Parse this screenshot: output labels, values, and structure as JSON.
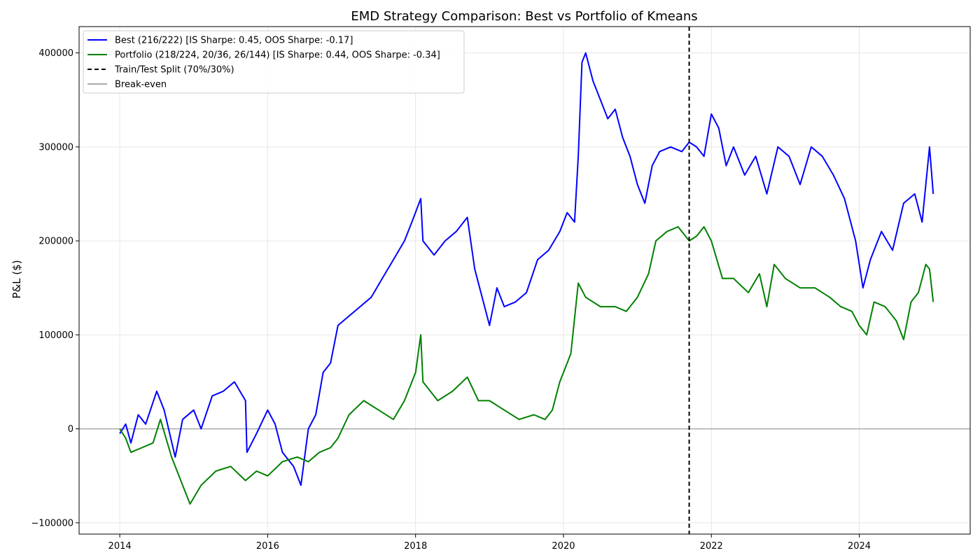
{
  "chart_data": {
    "type": "line",
    "title": "EMD Strategy Comparison: Best vs Portfolio of Kmeans",
    "xlabel": "",
    "ylabel": "P&L ($)",
    "xlim": [
      2013.45,
      2025.5
    ],
    "ylim": [
      -112000,
      428000
    ],
    "grid": true,
    "legend_position": "top-left",
    "x_ticks": [
      2014,
      2016,
      2018,
      2020,
      2022,
      2024
    ],
    "x_tick_labels": [
      "2014",
      "2016",
      "2018",
      "2020",
      "2022",
      "2024"
    ],
    "y_ticks": [
      -100000,
      0,
      100000,
      200000,
      300000,
      400000
    ],
    "y_tick_labels": [
      "−100000",
      "0",
      "100000",
      "200000",
      "300000",
      "400000"
    ],
    "series": [
      {
        "name": "Best (216/222) [IS Sharpe: 0.45, OOS Sharpe: -0.17]",
        "color": "#0000ff",
        "style": "solid",
        "x": [
          2014.0,
          2014.08,
          2014.15,
          2014.25,
          2014.35,
          2014.5,
          2014.6,
          2014.75,
          2014.85,
          2015.0,
          2015.1,
          2015.25,
          2015.4,
          2015.55,
          2015.7,
          2015.72,
          2015.85,
          2016.0,
          2016.1,
          2016.2,
          2016.35,
          2016.45,
          2016.55,
          2016.65,
          2016.75,
          2016.85,
          2016.95,
          2017.1,
          2017.25,
          2017.4,
          2017.55,
          2017.7,
          2017.85,
          2017.95,
          2018.07,
          2018.1,
          2018.25,
          2018.4,
          2018.55,
          2018.7,
          2018.8,
          2018.9,
          2019.0,
          2019.1,
          2019.2,
          2019.35,
          2019.5,
          2019.65,
          2019.8,
          2019.95,
          2020.05,
          2020.15,
          2020.2,
          2020.25,
          2020.3,
          2020.4,
          2020.5,
          2020.6,
          2020.7,
          2020.8,
          2020.9,
          2021.0,
          2021.1,
          2021.2,
          2021.3,
          2021.45,
          2021.6,
          2021.7,
          2021.8,
          2021.9,
          2022.0,
          2022.1,
          2022.2,
          2022.3,
          2022.45,
          2022.6,
          2022.75,
          2022.9,
          2023.05,
          2023.2,
          2023.35,
          2023.5,
          2023.65,
          2023.8,
          2023.95,
          2024.05,
          2024.15,
          2024.3,
          2024.45,
          2024.6,
          2024.75,
          2024.85,
          2024.95,
          2025.0
        ],
        "y": [
          -5000,
          5000,
          -15000,
          15000,
          5000,
          40000,
          20000,
          -30000,
          10000,
          20000,
          0,
          35000,
          40000,
          50000,
          30000,
          -25000,
          -5000,
          20000,
          5000,
          -25000,
          -40000,
          -60000,
          0,
          15000,
          60000,
          70000,
          110000,
          120000,
          130000,
          140000,
          160000,
          180000,
          200000,
          220000,
          245000,
          200000,
          185000,
          200000,
          210000,
          225000,
          170000,
          140000,
          110000,
          150000,
          130000,
          135000,
          145000,
          180000,
          190000,
          210000,
          230000,
          220000,
          290000,
          390000,
          400000,
          370000,
          350000,
          330000,
          340000,
          310000,
          290000,
          260000,
          240000,
          280000,
          295000,
          300000,
          295000,
          305000,
          300000,
          290000,
          335000,
          320000,
          280000,
          300000,
          270000,
          290000,
          250000,
          300000,
          290000,
          260000,
          300000,
          290000,
          270000,
          245000,
          200000,
          150000,
          180000,
          210000,
          190000,
          240000,
          250000,
          220000,
          300000,
          250000
        ]
      },
      {
        "name": "Portfolio (218/224, 20/36, 26/144) [IS Sharpe: 0.44, OOS Sharpe: -0.34]",
        "color": "#008000",
        "style": "solid",
        "x": [
          2014.0,
          2014.08,
          2014.15,
          2014.3,
          2014.45,
          2014.55,
          2014.7,
          2014.85,
          2014.95,
          2015.1,
          2015.3,
          2015.5,
          2015.7,
          2015.85,
          2016.0,
          2016.2,
          2016.4,
          2016.55,
          2016.7,
          2016.85,
          2016.95,
          2017.1,
          2017.3,
          2017.5,
          2017.7,
          2017.85,
          2018.0,
          2018.07,
          2018.1,
          2018.3,
          2018.5,
          2018.7,
          2018.85,
          2019.0,
          2019.2,
          2019.4,
          2019.6,
          2019.75,
          2019.85,
          2019.95,
          2020.1,
          2020.2,
          2020.3,
          2020.5,
          2020.7,
          2020.85,
          2021.0,
          2021.15,
          2021.25,
          2021.4,
          2021.55,
          2021.7,
          2021.8,
          2021.9,
          2022.0,
          2022.15,
          2022.3,
          2022.5,
          2022.65,
          2022.75,
          2022.85,
          2023.0,
          2023.2,
          2023.4,
          2023.6,
          2023.75,
          2023.9,
          2024.0,
          2024.1,
          2024.2,
          2024.35,
          2024.5,
          2024.6,
          2024.7,
          2024.8,
          2024.9,
          2024.95,
          2025.0
        ],
        "y": [
          0,
          -10000,
          -25000,
          -20000,
          -15000,
          10000,
          -30000,
          -60000,
          -80000,
          -60000,
          -45000,
          -40000,
          -55000,
          -45000,
          -50000,
          -35000,
          -30000,
          -35000,
          -25000,
          -20000,
          -10000,
          15000,
          30000,
          20000,
          10000,
          30000,
          60000,
          100000,
          50000,
          30000,
          40000,
          55000,
          30000,
          30000,
          20000,
          10000,
          15000,
          10000,
          20000,
          50000,
          80000,
          155000,
          140000,
          130000,
          130000,
          125000,
          140000,
          165000,
          200000,
          210000,
          215000,
          200000,
          205000,
          215000,
          200000,
          160000,
          160000,
          145000,
          165000,
          130000,
          175000,
          160000,
          150000,
          150000,
          140000,
          130000,
          125000,
          110000,
          100000,
          135000,
          130000,
          115000,
          95000,
          135000,
          145000,
          175000,
          170000,
          135000
        ]
      }
    ],
    "reference_lines": [
      {
        "name": "Train/Test Split (70%/30%)",
        "orientation": "vertical",
        "x": 2021.7,
        "color": "#000000",
        "style": "dashed"
      },
      {
        "name": "Break-even",
        "orientation": "horizontal",
        "y": 0,
        "color": "#aaaaaa",
        "style": "solid"
      }
    ]
  }
}
